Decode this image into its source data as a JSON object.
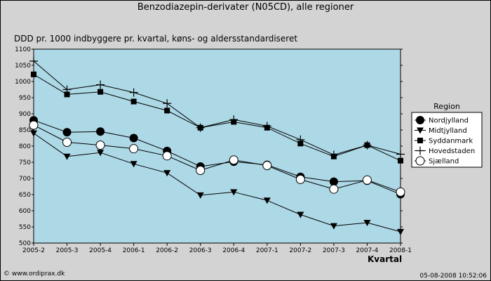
{
  "header": {
    "title": "Benzodiazepin-derivater (N05CD), alle regioner",
    "subtitle": "DDD pr. 1000 indbyggere pr. kvartal, køns- og aldersstandardiseret"
  },
  "footer": {
    "copyright": "© www.ordiprax.dk",
    "timestamp": "05-08-2008 10:52:06"
  },
  "colors": {
    "background": "#d3d3d3",
    "plot_area": "#add8e6",
    "line": "#000000"
  },
  "chart_data": {
    "type": "line",
    "title": "Benzodiazepin-derivater (N05CD), alle regioner",
    "subtitle": "DDD pr. 1000 indbyggere pr. kvartal, køns- og aldersstandardiseret",
    "xlabel": "Kvartal",
    "ylabel": "",
    "categories": [
      "2005-2",
      "2005-3",
      "2005-4",
      "2006-1",
      "2006-2",
      "2006-3",
      "2006-4",
      "2007-1",
      "2007-2",
      "2007-3",
      "2007-4",
      "2008-1"
    ],
    "yticks": [
      500,
      550,
      600,
      650,
      700,
      750,
      800,
      850,
      900,
      950,
      1000,
      1050,
      1100
    ],
    "ylim": [
      500,
      1100
    ],
    "grid": false,
    "legend": {
      "title": "Region",
      "placement": "right"
    },
    "series": [
      {
        "name": "Nordjylland",
        "marker": "circle-filled",
        "values": [
          880,
          843,
          845,
          825,
          785,
          737,
          752,
          742,
          705,
          690,
          693,
          651
        ]
      },
      {
        "name": "Midtjylland",
        "marker": "triangle-down-filled",
        "values": [
          840,
          768,
          780,
          745,
          717,
          648,
          658,
          632,
          588,
          553,
          563,
          535
        ]
      },
      {
        "name": "Syddanmark",
        "marker": "square-filled",
        "values": [
          1022,
          960,
          968,
          938,
          910,
          857,
          875,
          857,
          808,
          768,
          803,
          755
        ]
      },
      {
        "name": "Hovedstaden",
        "marker": "plus",
        "values": [
          1063,
          975,
          990,
          966,
          932,
          857,
          882,
          862,
          820,
          773,
          803,
          775
        ]
      },
      {
        "name": "Sjælland",
        "marker": "circle-open",
        "values": [
          865,
          812,
          803,
          792,
          770,
          725,
          757,
          740,
          697,
          667,
          695,
          658
        ]
      }
    ]
  }
}
